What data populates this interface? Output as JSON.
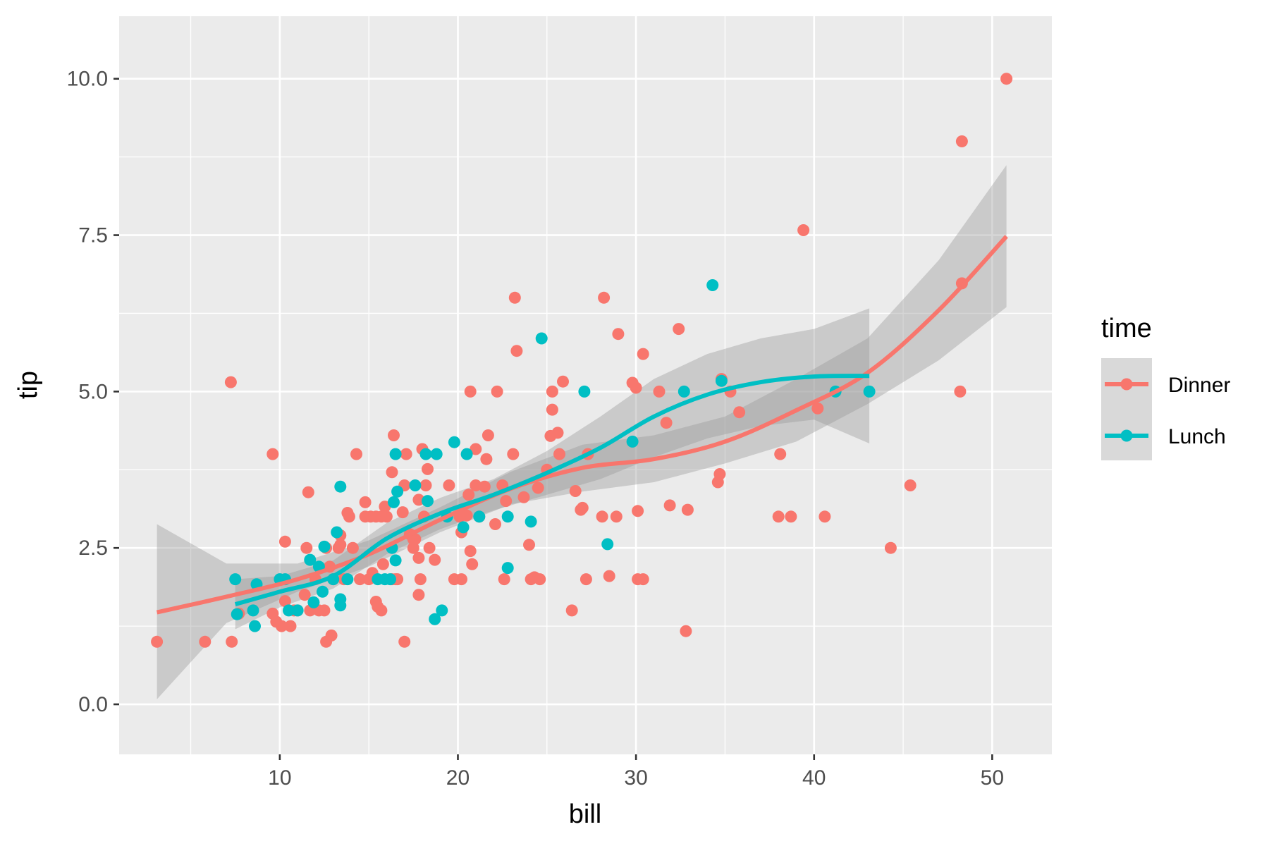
{
  "chart_data": {
    "type": "scatter",
    "title": "",
    "xlabel": "bill",
    "ylabel": "tip",
    "xlim": [
      0.98,
      53.35
    ],
    "ylim": [
      -0.8,
      11.0
    ],
    "x_ticks": [
      10,
      20,
      30,
      40,
      50
    ],
    "y_ticks": [
      0,
      2.5,
      5,
      7.5,
      10
    ],
    "x_tick_labels": [
      "10",
      "20",
      "30",
      "40",
      "50"
    ],
    "y_tick_labels": [
      "0.0",
      "2.5",
      "5.0",
      "7.5",
      "10.0"
    ],
    "grid": true,
    "legend": {
      "title": "time",
      "position": "right"
    },
    "series": [
      {
        "name": "Dinner",
        "color": "#F8766D",
        "points": [
          [
            3.1,
            1.0
          ],
          [
            5.8,
            1.0
          ],
          [
            7.3,
            1.0
          ],
          [
            7.25,
            5.15
          ],
          [
            7.7,
            1.45
          ],
          [
            9.6,
            4.0
          ],
          [
            9.6,
            1.45
          ],
          [
            9.8,
            1.32
          ],
          [
            10.1,
            1.25
          ],
          [
            10.3,
            2.6
          ],
          [
            10.6,
            1.25
          ],
          [
            10.3,
            1.65
          ],
          [
            10.8,
            1.5
          ],
          [
            11.0,
            1.5
          ],
          [
            11.4,
            1.75
          ],
          [
            11.5,
            2.5
          ],
          [
            11.6,
            3.39
          ],
          [
            11.7,
            1.5
          ],
          [
            12.0,
            2.0
          ],
          [
            12.2,
            1.5
          ],
          [
            12.5,
            1.5
          ],
          [
            12.6,
            2.5
          ],
          [
            12.6,
            1.0
          ],
          [
            12.8,
            2.2
          ],
          [
            12.9,
            1.1
          ],
          [
            13.0,
            2.0
          ],
          [
            13.3,
            2.5
          ],
          [
            13.4,
            2.7
          ],
          [
            13.4,
            2.55
          ],
          [
            13.6,
            2.0
          ],
          [
            13.8,
            3.06
          ],
          [
            13.9,
            3.0
          ],
          [
            14.1,
            2.5
          ],
          [
            14.3,
            4.0
          ],
          [
            14.5,
            2.0
          ],
          [
            14.8,
            3.23
          ],
          [
            14.8,
            3.0
          ],
          [
            15.0,
            2.0
          ],
          [
            15.1,
            3.0
          ],
          [
            15.2,
            2.1
          ],
          [
            15.4,
            1.64
          ],
          [
            15.4,
            3.0
          ],
          [
            15.5,
            1.56
          ],
          [
            15.7,
            3.0
          ],
          [
            15.7,
            1.5
          ],
          [
            15.8,
            2.24
          ],
          [
            15.9,
            3.16
          ],
          [
            16.0,
            3.0
          ],
          [
            16.3,
            2.0
          ],
          [
            16.3,
            3.71
          ],
          [
            16.4,
            4.3
          ],
          [
            16.5,
            2.0
          ],
          [
            16.6,
            2.0
          ],
          [
            16.9,
            3.07
          ],
          [
            17.0,
            3.5
          ],
          [
            17.0,
            1.0
          ],
          [
            17.1,
            4.0
          ],
          [
            17.3,
            2.72
          ],
          [
            17.5,
            2.64
          ],
          [
            17.5,
            2.5
          ],
          [
            17.6,
            2.64
          ],
          [
            17.8,
            3.27
          ],
          [
            17.8,
            2.34
          ],
          [
            17.8,
            1.75
          ],
          [
            17.9,
            2.0
          ],
          [
            18.0,
            4.08
          ],
          [
            18.1,
            3.0
          ],
          [
            18.2,
            3.5
          ],
          [
            18.3,
            3.76
          ],
          [
            18.4,
            2.5
          ],
          [
            18.7,
            2.31
          ],
          [
            19.5,
            3.5
          ],
          [
            19.8,
            2.0
          ],
          [
            20.1,
            3.0
          ],
          [
            20.2,
            2.0
          ],
          [
            20.2,
            2.75
          ],
          [
            20.5,
            3.02
          ],
          [
            20.6,
            3.35
          ],
          [
            20.7,
            5.0
          ],
          [
            20.7,
            2.45
          ],
          [
            20.8,
            2.24
          ],
          [
            21.0,
            4.08
          ],
          [
            21.0,
            3.5
          ],
          [
            21.2,
            3.0
          ],
          [
            21.5,
            3.48
          ],
          [
            21.6,
            3.92
          ],
          [
            21.7,
            4.3
          ],
          [
            22.1,
            2.88
          ],
          [
            22.2,
            5.0
          ],
          [
            22.5,
            3.5
          ],
          [
            22.6,
            2.0
          ],
          [
            22.7,
            3.25
          ],
          [
            23.1,
            4.0
          ],
          [
            23.2,
            6.5
          ],
          [
            23.3,
            5.65
          ],
          [
            23.7,
            3.31
          ],
          [
            24.0,
            2.55
          ],
          [
            24.1,
            2.0
          ],
          [
            24.3,
            2.03
          ],
          [
            24.5,
            3.46
          ],
          [
            24.6,
            2.0
          ],
          [
            25.0,
            3.75
          ],
          [
            25.2,
            4.29
          ],
          [
            25.3,
            4.71
          ],
          [
            25.3,
            5.0
          ],
          [
            25.6,
            4.34
          ],
          [
            25.7,
            4.0
          ],
          [
            25.9,
            5.16
          ],
          [
            26.4,
            1.5
          ],
          [
            26.6,
            3.41
          ],
          [
            26.9,
            3.11
          ],
          [
            27.0,
            3.14
          ],
          [
            27.2,
            2.0
          ],
          [
            27.3,
            4.0
          ],
          [
            28.1,
            3.0
          ],
          [
            28.2,
            6.5
          ],
          [
            28.5,
            2.05
          ],
          [
            28.9,
            3.0
          ],
          [
            29.0,
            5.92
          ],
          [
            29.8,
            5.14
          ],
          [
            30.0,
            5.06
          ],
          [
            30.1,
            2.0
          ],
          [
            30.1,
            3.09
          ],
          [
            30.4,
            2.0
          ],
          [
            30.4,
            5.6
          ],
          [
            31.3,
            5.0
          ],
          [
            31.7,
            4.5
          ],
          [
            31.9,
            3.18
          ],
          [
            32.4,
            6.0
          ],
          [
            32.8,
            1.17
          ],
          [
            32.9,
            3.11
          ],
          [
            34.6,
            3.55
          ],
          [
            34.7,
            3.68
          ],
          [
            34.8,
            5.2
          ],
          [
            35.3,
            5.0
          ],
          [
            35.8,
            4.67
          ],
          [
            38.0,
            3.0
          ],
          [
            38.1,
            4.0
          ],
          [
            38.7,
            3.0
          ],
          [
            39.4,
            7.58
          ],
          [
            40.2,
            4.73
          ],
          [
            40.6,
            3.0
          ],
          [
            44.3,
            2.5
          ],
          [
            45.4,
            3.5
          ],
          [
            48.2,
            5.0
          ],
          [
            48.3,
            6.73
          ],
          [
            48.3,
            9.0
          ],
          [
            50.8,
            10.0
          ]
        ],
        "smooth": [
          [
            3.1,
            1.47
          ],
          [
            7.0,
            1.72
          ],
          [
            11.0,
            2.0
          ],
          [
            15.0,
            2.4
          ],
          [
            19.0,
            2.95
          ],
          [
            23.0,
            3.45
          ],
          [
            27.0,
            3.78
          ],
          [
            31.0,
            3.92
          ],
          [
            35.0,
            4.2
          ],
          [
            39.0,
            4.7
          ],
          [
            43.0,
            5.3
          ],
          [
            47.0,
            6.3
          ],
          [
            50.8,
            7.48
          ]
        ],
        "band_lower": [
          [
            3.1,
            0.08
          ],
          [
            7.0,
            1.3
          ],
          [
            11.0,
            1.8
          ],
          [
            15.0,
            2.2
          ],
          [
            19.0,
            2.75
          ],
          [
            23.0,
            3.2
          ],
          [
            27.0,
            3.4
          ],
          [
            31.0,
            3.55
          ],
          [
            35.0,
            3.85
          ],
          [
            39.0,
            4.2
          ],
          [
            43.0,
            4.8
          ],
          [
            47.0,
            5.5
          ],
          [
            50.8,
            6.35
          ]
        ],
        "band_upper": [
          [
            3.1,
            2.88
          ],
          [
            7.0,
            2.25
          ],
          [
            11.0,
            2.25
          ],
          [
            15.0,
            2.62
          ],
          [
            19.0,
            3.15
          ],
          [
            23.0,
            3.72
          ],
          [
            27.0,
            4.15
          ],
          [
            31.0,
            4.3
          ],
          [
            35.0,
            4.6
          ],
          [
            39.0,
            5.2
          ],
          [
            43.0,
            5.85
          ],
          [
            47.0,
            7.1
          ],
          [
            50.8,
            8.62
          ]
        ]
      },
      {
        "name": "Lunch",
        "color": "#00BFC4",
        "points": [
          [
            7.5,
            2.0
          ],
          [
            7.6,
            1.44
          ],
          [
            8.5,
            1.5
          ],
          [
            8.6,
            1.25
          ],
          [
            8.7,
            1.92
          ],
          [
            10.0,
            2.0
          ],
          [
            10.3,
            2.0
          ],
          [
            10.5,
            1.5
          ],
          [
            11.0,
            1.5
          ],
          [
            11.7,
            2.31
          ],
          [
            11.9,
            1.63
          ],
          [
            12.2,
            2.2
          ],
          [
            12.4,
            1.8
          ],
          [
            12.5,
            2.52
          ],
          [
            13.0,
            2.0
          ],
          [
            13.2,
            2.75
          ],
          [
            13.4,
            3.48
          ],
          [
            13.4,
            1.68
          ],
          [
            13.4,
            1.58
          ],
          [
            13.8,
            2.0
          ],
          [
            15.5,
            2.0
          ],
          [
            15.9,
            2.0
          ],
          [
            16.2,
            2.0
          ],
          [
            16.3,
            2.5
          ],
          [
            16.4,
            3.23
          ],
          [
            16.5,
            4.0
          ],
          [
            16.5,
            2.3
          ],
          [
            16.6,
            3.4
          ],
          [
            17.6,
            3.5
          ],
          [
            18.2,
            4.0
          ],
          [
            18.3,
            3.25
          ],
          [
            18.7,
            1.36
          ],
          [
            18.8,
            4.0
          ],
          [
            19.1,
            1.5
          ],
          [
            19.4,
            3.0
          ],
          [
            19.8,
            4.19
          ],
          [
            20.3,
            2.83
          ],
          [
            20.5,
            4.0
          ],
          [
            21.2,
            3.0
          ],
          [
            22.8,
            3.0
          ],
          [
            22.8,
            2.18
          ],
          [
            24.1,
            2.92
          ],
          [
            24.7,
            5.85
          ],
          [
            27.1,
            5.0
          ],
          [
            28.4,
            2.56
          ],
          [
            29.8,
            4.2
          ],
          [
            32.7,
            5.0
          ],
          [
            34.3,
            6.7
          ],
          [
            34.8,
            5.17
          ],
          [
            41.2,
            5.0
          ],
          [
            43.1,
            5.0
          ]
        ],
        "smooth": [
          [
            7.5,
            1.6
          ],
          [
            10.0,
            1.8
          ],
          [
            13.0,
            2.05
          ],
          [
            16.0,
            2.65
          ],
          [
            19.0,
            3.05
          ],
          [
            22.0,
            3.35
          ],
          [
            25.0,
            3.7
          ],
          [
            28.0,
            4.1
          ],
          [
            31.0,
            4.6
          ],
          [
            34.0,
            4.95
          ],
          [
            37.0,
            5.15
          ],
          [
            40.0,
            5.24
          ],
          [
            43.1,
            5.25
          ]
        ],
        "band_lower": [
          [
            7.5,
            1.2
          ],
          [
            10.0,
            1.55
          ],
          [
            13.0,
            1.85
          ],
          [
            16.0,
            2.4
          ],
          [
            19.0,
            2.8
          ],
          [
            22.0,
            3.1
          ],
          [
            25.0,
            3.35
          ],
          [
            28.0,
            3.6
          ],
          [
            31.0,
            3.95
          ],
          [
            34.0,
            4.25
          ],
          [
            37.0,
            4.45
          ],
          [
            40.0,
            4.55
          ],
          [
            43.1,
            4.17
          ]
        ],
        "band_upper": [
          [
            7.5,
            2.0
          ],
          [
            10.0,
            2.05
          ],
          [
            13.0,
            2.3
          ],
          [
            16.0,
            2.9
          ],
          [
            19.0,
            3.3
          ],
          [
            22.0,
            3.6
          ],
          [
            25.0,
            4.05
          ],
          [
            28.0,
            4.6
          ],
          [
            31.0,
            5.2
          ],
          [
            34.0,
            5.6
          ],
          [
            37.0,
            5.85
          ],
          [
            40.0,
            6.0
          ],
          [
            43.1,
            6.33
          ]
        ]
      }
    ]
  }
}
